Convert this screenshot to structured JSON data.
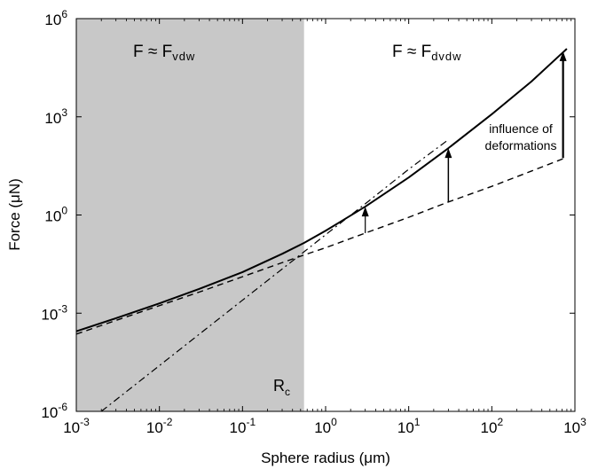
{
  "chart_data": {
    "type": "line",
    "xlabel": "Sphere radius (μm)",
    "ylabel": "Force (μN)",
    "xscale": "log",
    "yscale": "log",
    "xlim": [
      0.001,
      1000
    ],
    "ylim": [
      1e-06,
      1000000
    ],
    "grid": false,
    "x_ticks": [
      {
        "base": "10",
        "exp": "-3",
        "value": 0.001
      },
      {
        "base": "10",
        "exp": "-2",
        "value": 0.01
      },
      {
        "base": "10",
        "exp": "-1",
        "value": 0.1
      },
      {
        "base": "10",
        "exp": "0",
        "value": 1
      },
      {
        "base": "10",
        "exp": "1",
        "value": 10
      },
      {
        "base": "10",
        "exp": "2",
        "value": 100
      },
      {
        "base": "10",
        "exp": "3",
        "value": 1000
      }
    ],
    "y_ticks": [
      {
        "base": "10",
        "exp": "-6",
        "value": 1e-06
      },
      {
        "base": "10",
        "exp": "-3",
        "value": 0.001
      },
      {
        "base": "10",
        "exp": "0",
        "value": 1
      },
      {
        "base": "10",
        "exp": "3",
        "value": 1000
      },
      {
        "base": "10",
        "exp": "6",
        "value": 1000000
      }
    ],
    "shaded_region": {
      "x_from": 0.001,
      "x_to": 0.55,
      "color": "#c8c8c8"
    },
    "series": [
      {
        "style": "solid",
        "x": [
          0.001,
          0.003,
          0.01,
          0.03,
          0.1,
          0.3,
          0.55,
          1,
          3,
          10,
          30,
          100,
          300,
          800
        ],
        "y": [
          0.00028,
          0.0007,
          0.002,
          0.0055,
          0.018,
          0.065,
          0.14,
          0.33,
          1.8,
          14,
          110,
          1200,
          12000,
          120000
        ]
      },
      {
        "style": "dashed",
        "x": [
          0.001,
          0.003,
          0.01,
          0.03,
          0.1,
          0.3,
          0.55,
          1,
          3,
          10,
          30,
          100,
          300,
          800
        ],
        "y": [
          0.00023,
          0.0006,
          0.0017,
          0.0044,
          0.013,
          0.035,
          0.06,
          0.1,
          0.28,
          0.85,
          2.5,
          7.5,
          22,
          58
        ]
      },
      {
        "style": "dashdot",
        "x": [
          0.002,
          0.01,
          0.1,
          0.55,
          1,
          3,
          10,
          30
        ],
        "y": [
          1e-06,
          2.5e-05,
          0.0025,
          0.075,
          0.25,
          2.2,
          25,
          200
        ]
      }
    ],
    "arrows": [
      {
        "x": 3,
        "y_from": 0.28,
        "y_to": 1.8
      },
      {
        "x": 30,
        "y_from": 2.5,
        "y_to": 110
      },
      {
        "x": 720,
        "y_from": 55,
        "y_to": 100000
      }
    ],
    "annotations": {
      "region_vdw": {
        "prefix": "F ≈ F",
        "sub": "vdw"
      },
      "region_dvdw": {
        "prefix": "F ≈ F",
        "sub": "dvdw"
      },
      "influence_line1": "influence of",
      "influence_line2": "deformations",
      "rc": {
        "base": "R",
        "sub": "c"
      }
    }
  }
}
